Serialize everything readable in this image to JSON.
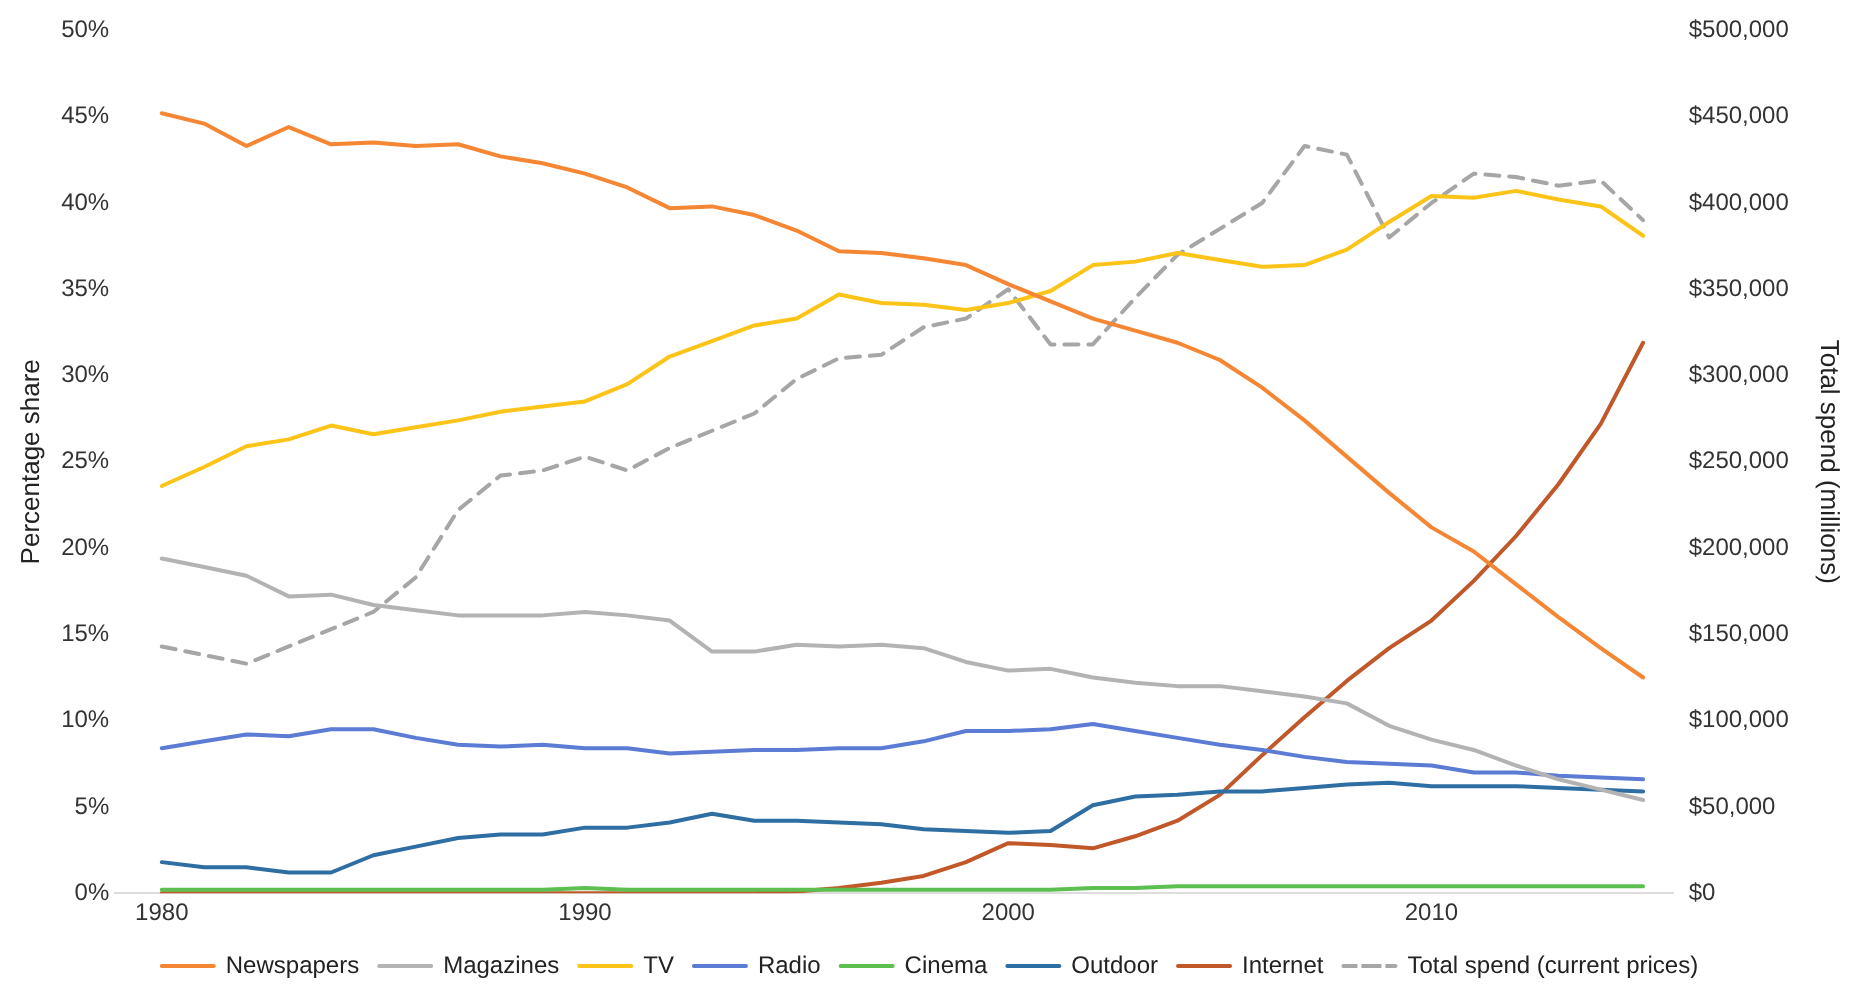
{
  "chart_data": {
    "type": "line",
    "ylabel": "Percentage share",
    "y2label": "Total spend (millions)",
    "x": [
      1980,
      1981,
      1982,
      1983,
      1984,
      1985,
      1986,
      1987,
      1988,
      1989,
      1990,
      1991,
      1992,
      1993,
      1994,
      1995,
      1996,
      1997,
      1998,
      1999,
      2000,
      2001,
      2002,
      2003,
      2004,
      2005,
      2006,
      2007,
      2008,
      2009,
      2010,
      2011,
      2012,
      2013,
      2014,
      2015
    ],
    "xlim": [
      1978.9,
      2015.7
    ],
    "xticks": [
      1980,
      1990,
      2000,
      2010
    ],
    "ylim": [
      0,
      50
    ],
    "yticks": [
      {
        "value": 0,
        "label": "0%"
      },
      {
        "value": 5,
        "label": "5%"
      },
      {
        "value": 10,
        "label": "10%"
      },
      {
        "value": 15,
        "label": "15%"
      },
      {
        "value": 20,
        "label": "20%"
      },
      {
        "value": 25,
        "label": "25%"
      },
      {
        "value": 30,
        "label": "30%"
      },
      {
        "value": 35,
        "label": "35%"
      },
      {
        "value": 40,
        "label": "40%"
      },
      {
        "value": 45,
        "label": "45%"
      },
      {
        "value": 50,
        "label": "50%"
      }
    ],
    "y2lim": [
      0,
      500000
    ],
    "y2ticks": [
      {
        "value": 0,
        "label": "$0"
      },
      {
        "value": 50000,
        "label": "$50,000"
      },
      {
        "value": 100000,
        "label": "$100,000"
      },
      {
        "value": 150000,
        "label": "$150,000"
      },
      {
        "value": 200000,
        "label": "$200,000"
      },
      {
        "value": 250000,
        "label": "$250,000"
      },
      {
        "value": 300000,
        "label": "$300,000"
      },
      {
        "value": 350000,
        "label": "$350,000"
      },
      {
        "value": 400000,
        "label": "$400,000"
      },
      {
        "value": 450000,
        "label": "$450,000"
      },
      {
        "value": 500000,
        "label": "$500,000"
      }
    ],
    "grid": false,
    "legend": "bottom",
    "marker": "none",
    "line_style": "solid",
    "series": [
      {
        "name": "Newspapers",
        "color": "#f58634",
        "values": [
          45.2,
          44.6,
          43.3,
          44.4,
          43.4,
          43.5,
          43.3,
          43.4,
          42.7,
          42.3,
          41.7,
          40.9,
          39.7,
          39.8,
          39.3,
          38.4,
          37.2,
          37.1,
          36.8,
          36.4,
          35.3,
          34.3,
          33.3,
          32.6,
          31.9,
          30.9,
          29.3,
          27.4,
          25.3,
          23.2,
          21.2,
          19.8,
          17.9,
          16.0,
          14.2,
          12.5
        ]
      },
      {
        "name": "Magazines",
        "color": "#b3b3b3",
        "values": [
          19.4,
          18.9,
          18.4,
          17.2,
          17.3,
          16.7,
          16.4,
          16.1,
          16.1,
          16.1,
          16.3,
          16.1,
          15.8,
          14.0,
          14.0,
          14.4,
          14.3,
          14.4,
          14.2,
          13.4,
          12.9,
          13.0,
          12.5,
          12.2,
          12.0,
          12.0,
          11.7,
          11.4,
          11.0,
          9.7,
          8.9,
          8.3,
          7.4,
          6.6,
          6.0,
          5.4
        ]
      },
      {
        "name": "TV",
        "color": "#fcc419",
        "values": [
          23.6,
          24.7,
          25.9,
          26.3,
          27.1,
          26.6,
          27.0,
          27.4,
          27.9,
          28.2,
          28.5,
          29.5,
          31.1,
          32.0,
          32.9,
          33.3,
          34.7,
          34.2,
          34.1,
          33.8,
          34.2,
          34.9,
          36.4,
          36.6,
          37.1,
          36.7,
          36.3,
          36.4,
          37.3,
          38.9,
          40.4,
          40.3,
          40.7,
          40.2,
          39.8,
          38.1
        ]
      },
      {
        "name": "Radio",
        "color": "#5b7bd5",
        "values": [
          8.4,
          8.8,
          9.2,
          9.1,
          9.5,
          9.5,
          9.0,
          8.6,
          8.5,
          8.6,
          8.4,
          8.4,
          8.1,
          8.2,
          8.3,
          8.3,
          8.4,
          8.4,
          8.8,
          9.4,
          9.4,
          9.5,
          9.8,
          9.4,
          9.0,
          8.6,
          8.3,
          7.9,
          7.6,
          7.5,
          7.4,
          7.0,
          7.0,
          6.8,
          6.7,
          6.6
        ]
      },
      {
        "name": "Cinema",
        "color": "#5cbf4f",
        "values": [
          0.2,
          0.2,
          0.2,
          0.2,
          0.2,
          0.2,
          0.2,
          0.2,
          0.2,
          0.2,
          0.3,
          0.2,
          0.2,
          0.2,
          0.2,
          0.2,
          0.2,
          0.2,
          0.2,
          0.2,
          0.2,
          0.2,
          0.3,
          0.3,
          0.4,
          0.4,
          0.4,
          0.4,
          0.4,
          0.4,
          0.4,
          0.4,
          0.4,
          0.4,
          0.4,
          0.4
        ]
      },
      {
        "name": "Outdoor",
        "color": "#2f6ea3",
        "values": [
          1.8,
          1.5,
          1.5,
          1.2,
          1.2,
          2.2,
          2.7,
          3.2,
          3.4,
          3.4,
          3.8,
          3.8,
          4.1,
          4.6,
          4.2,
          4.2,
          4.1,
          4.0,
          3.7,
          3.6,
          3.5,
          3.6,
          5.1,
          5.6,
          5.7,
          5.9,
          5.9,
          6.1,
          6.3,
          6.4,
          6.2,
          6.2,
          6.2,
          6.1,
          6.0,
          5.9
        ]
      },
      {
        "name": "Internet",
        "color": "#c0582a",
        "values": [
          0,
          0,
          0,
          0,
          0,
          0,
          0,
          0,
          0,
          0,
          0,
          0,
          0,
          0,
          0,
          0.1,
          0.3,
          0.6,
          1.0,
          1.8,
          2.9,
          2.8,
          2.6,
          3.3,
          4.2,
          5.7,
          8.0,
          10.2,
          12.3,
          14.2,
          15.8,
          18.1,
          20.7,
          23.7,
          27.2,
          31.9
        ]
      },
      {
        "name": "Total spend (current prices)",
        "color": "#a6a6a6",
        "axis": "y2",
        "line_style": "dashed",
        "values": [
          143000,
          138000,
          133000,
          143000,
          153000,
          163000,
          183000,
          222000,
          242000,
          245000,
          253000,
          245000,
          258000,
          268000,
          278000,
          298000,
          310000,
          312000,
          328000,
          333000,
          350000,
          318000,
          318000,
          345000,
          370000,
          385000,
          400000,
          433000,
          428000,
          380000,
          400000,
          417000,
          415000,
          410000,
          413000,
          390000
        ]
      }
    ]
  }
}
